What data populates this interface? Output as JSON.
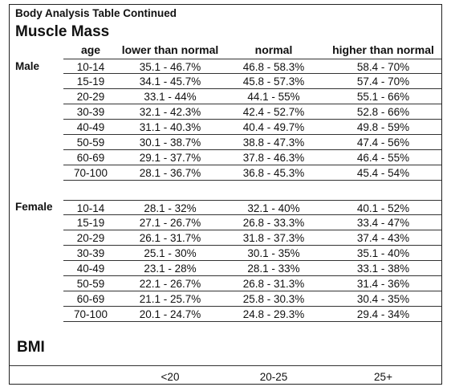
{
  "title": "Body Analysis Table Continued",
  "section": "Muscle Mass",
  "headers": {
    "age": "age",
    "low": "lower than normal",
    "normal": "normal",
    "high": "higher than normal"
  },
  "male": {
    "label": "Male",
    "rows": [
      {
        "age": "10-14",
        "low": "35.1 - 46.7%",
        "normal": "46.8 - 58.3%",
        "high": "58.4 - 70%"
      },
      {
        "age": "15-19",
        "low": "34.1 - 45.7%",
        "normal": "45.8 - 57.3%",
        "high": "57.4 - 70%"
      },
      {
        "age": "20-29",
        "low": "33.1 - 44%",
        "normal": "44.1 - 55%",
        "high": "55.1 - 66%"
      },
      {
        "age": "30-39",
        "low": "32.1 - 42.3%",
        "normal": "42.4 - 52.7%",
        "high": "52.8 - 66%"
      },
      {
        "age": "40-49",
        "low": "31.1 - 40.3%",
        "normal": "40.4 - 49.7%",
        "high": "49.8 - 59%"
      },
      {
        "age": "50-59",
        "low": "30.1 - 38.7%",
        "normal": "38.8 - 47.3%",
        "high": "47.4 - 56%"
      },
      {
        "age": "60-69",
        "low": "29.1 - 37.7%",
        "normal": "37.8 - 46.3%",
        "high": "46.4 - 55%"
      },
      {
        "age": "70-100",
        "low": "28.1 - 36.7%",
        "normal": "36.8 - 45.3%",
        "high": "45.4 - 54%"
      }
    ]
  },
  "female": {
    "label": "Female",
    "rows": [
      {
        "age": "10-14",
        "low": "28.1 - 32%",
        "normal": "32.1 - 40%",
        "high": "40.1 - 52%"
      },
      {
        "age": "15-19",
        "low": "27.1 - 26.7%",
        "normal": "26.8 - 33.3%",
        "high": "33.4 - 47%"
      },
      {
        "age": "20-29",
        "low": "26.1 - 31.7%",
        "normal": "31.8 - 37.3%",
        "high": "37.4 - 43%"
      },
      {
        "age": "30-39",
        "low": "25.1 - 30%",
        "normal": "30.1 - 35%",
        "high": "35.1 - 40%"
      },
      {
        "age": "40-49",
        "low": "23.1 - 28%",
        "normal": "28.1 - 33%",
        "high": "33.1 - 38%"
      },
      {
        "age": "50-59",
        "low": "22.1 - 26.7%",
        "normal": "26.8 - 31.3%",
        "high": "31.4 - 36%"
      },
      {
        "age": "60-69",
        "low": "21.1 - 25.7%",
        "normal": "25.8 - 30.3%",
        "high": "30.4 - 35%"
      },
      {
        "age": "70-100",
        "low": "20.1 - 24.7%",
        "normal": "24.8 - 29.3%",
        "high": "29.4 - 34%"
      }
    ]
  },
  "bmi": {
    "title": "BMI",
    "values": [
      "<20",
      "20-25",
      "25+"
    ]
  }
}
